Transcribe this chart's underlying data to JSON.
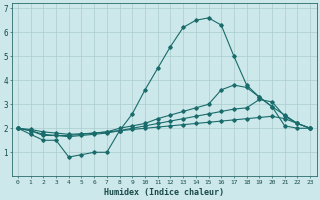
{
  "xlabel": "Humidex (Indice chaleur)",
  "background_color": "#cce8ea",
  "grid_color": "#aacccc",
  "line_color": "#1a6b6b",
  "xlim": [
    -0.5,
    23.5
  ],
  "ylim": [
    0,
    7.2
  ],
  "xticks": [
    0,
    1,
    2,
    3,
    4,
    5,
    6,
    7,
    8,
    9,
    10,
    11,
    12,
    13,
    14,
    15,
    16,
    17,
    18,
    19,
    20,
    21,
    22,
    23
  ],
  "yticks": [
    1,
    2,
    3,
    4,
    5,
    6,
    7
  ],
  "series": [
    {
      "x": [
        0,
        1,
        2,
        3,
        4,
        5,
        6,
        7,
        8,
        9,
        10,
        11,
        12,
        13,
        14,
        15,
        16,
        17,
        18,
        19,
        20,
        21,
        22,
        23
      ],
      "y": [
        2.0,
        1.75,
        1.5,
        1.5,
        0.8,
        0.9,
        1.0,
        1.0,
        1.9,
        2.6,
        3.6,
        4.5,
        5.4,
        6.2,
        6.5,
        6.6,
        6.3,
        5.0,
        3.8,
        3.3,
        2.9,
        2.1,
        2.0,
        2.0
      ]
    },
    {
      "x": [
        0,
        1,
        2,
        3,
        4,
        5,
        6,
        7,
        8,
        9,
        10,
        11,
        12,
        13,
        14,
        15,
        16,
        17,
        18,
        19,
        20,
        21,
        22,
        23
      ],
      "y": [
        2.0,
        1.9,
        1.7,
        1.7,
        1.7,
        1.75,
        1.8,
        1.85,
        2.0,
        2.1,
        2.2,
        2.4,
        2.55,
        2.7,
        2.85,
        3.0,
        3.6,
        3.8,
        3.7,
        3.3,
        2.9,
        2.55,
        2.2,
        2.0
      ]
    },
    {
      "x": [
        0,
        1,
        2,
        3,
        4,
        5,
        6,
        7,
        8,
        9,
        10,
        11,
        12,
        13,
        14,
        15,
        16,
        17,
        18,
        19,
        20,
        21,
        22,
        23
      ],
      "y": [
        2.0,
        1.9,
        1.75,
        1.7,
        1.65,
        1.7,
        1.75,
        1.8,
        1.9,
        2.0,
        2.1,
        2.2,
        2.3,
        2.4,
        2.5,
        2.6,
        2.7,
        2.8,
        2.85,
        3.2,
        3.1,
        2.5,
        2.2,
        2.0
      ]
    },
    {
      "x": [
        0,
        1,
        2,
        3,
        4,
        5,
        6,
        7,
        8,
        9,
        10,
        11,
        12,
        13,
        14,
        15,
        16,
        17,
        18,
        19,
        20,
        21,
        22,
        23
      ],
      "y": [
        2.0,
        1.95,
        1.85,
        1.8,
        1.75,
        1.77,
        1.8,
        1.85,
        1.9,
        1.95,
        2.0,
        2.05,
        2.1,
        2.15,
        2.2,
        2.25,
        2.3,
        2.35,
        2.4,
        2.45,
        2.5,
        2.4,
        2.2,
        2.0
      ]
    }
  ]
}
